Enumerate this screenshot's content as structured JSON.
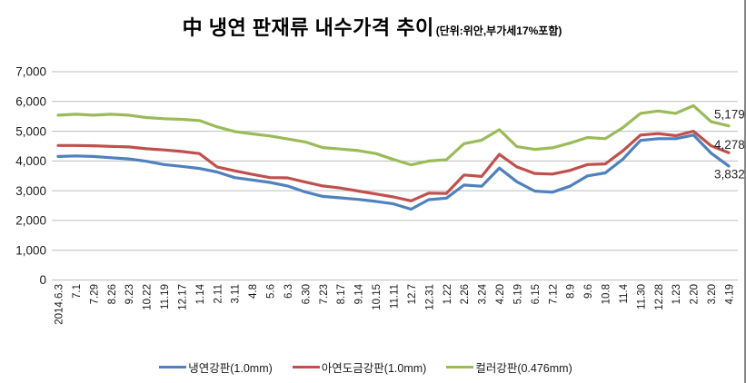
{
  "title": {
    "text": "中 냉연 판재류 내수가격 추이",
    "unit": "(단위:위안,부가세17%포함)"
  },
  "chart_data": {
    "type": "line",
    "title": "中 냉연 판재류 내수가격 추이",
    "unit_note": "(단위:위안,부가세17%포함)",
    "xlabel": "",
    "ylabel": "",
    "ylim": [
      0,
      7000
    ],
    "y_tick_step": 1000,
    "y_ticks": [
      "0",
      "1,000",
      "2,000",
      "3,000",
      "4,000",
      "5,000",
      "6,000",
      "7,000"
    ],
    "grid": true,
    "legend_position": "bottom",
    "categories": [
      "2014.6.3",
      "7.1",
      "7.29",
      "8.26",
      "9.23",
      "10.22",
      "11.19",
      "12.17",
      "1.14",
      "2.11",
      "3.11",
      "4.8",
      "5.6",
      "6.3",
      "6.30",
      "7.23",
      "8.17",
      "9.14",
      "10.15",
      "11.11",
      "12.7",
      "12.31",
      "1.22",
      "2.26",
      "3.24",
      "4.20",
      "5.19",
      "6.15",
      "7.12",
      "8.9",
      "9.6",
      "10.8",
      "11.4",
      "11.30",
      "12.28",
      "1.23",
      "2.20",
      "3.20",
      "4.19"
    ],
    "series": [
      {
        "name": "냉연강판(1.0mm)",
        "color": "#4f81bd",
        "end_label": "3,832",
        "values": [
          4150,
          4170,
          4150,
          4110,
          4070,
          3990,
          3880,
          3820,
          3750,
          3630,
          3440,
          3360,
          3280,
          3160,
          2960,
          2810,
          2760,
          2710,
          2640,
          2560,
          2380,
          2700,
          2750,
          3190,
          3150,
          3760,
          3300,
          2990,
          2950,
          3150,
          3500,
          3600,
          4060,
          4690,
          4750,
          4750,
          4870,
          4260,
          3832
        ]
      },
      {
        "name": "아연도금강판(1.0mm)",
        "color": "#c0504d",
        "end_label": "4,278",
        "values": [
          4520,
          4520,
          4510,
          4490,
          4470,
          4410,
          4370,
          4320,
          4250,
          3800,
          3670,
          3550,
          3440,
          3430,
          3290,
          3160,
          3090,
          2990,
          2890,
          2790,
          2660,
          2920,
          2910,
          3530,
          3480,
          4220,
          3800,
          3580,
          3560,
          3680,
          3880,
          3900,
          4340,
          4870,
          4920,
          4850,
          5000,
          4510,
          4278
        ]
      },
      {
        "name": "컬러강판(0.476mm)",
        "color": "#9bbb59",
        "end_label": "5,179",
        "values": [
          5540,
          5570,
          5540,
          5570,
          5540,
          5460,
          5420,
          5400,
          5360,
          5150,
          4990,
          4910,
          4840,
          4740,
          4640,
          4450,
          4400,
          4350,
          4250,
          4050,
          3870,
          4000,
          4040,
          4580,
          4700,
          5050,
          4480,
          4390,
          4440,
          4600,
          4790,
          4750,
          5120,
          5600,
          5680,
          5600,
          5860,
          5320,
          5179
        ]
      }
    ]
  }
}
